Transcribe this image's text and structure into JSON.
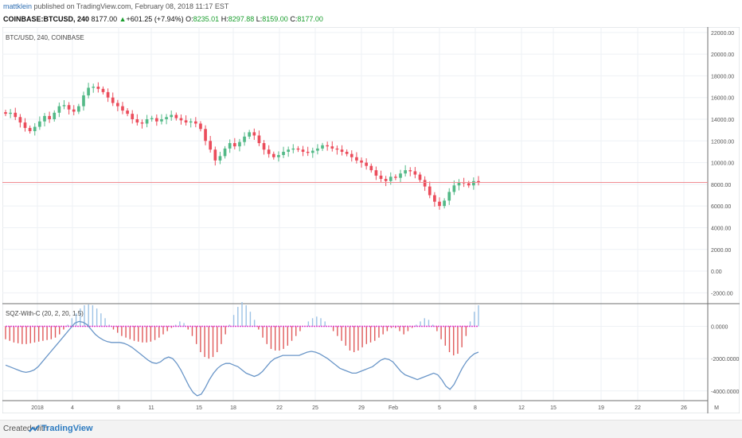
{
  "header": {
    "author": "mattklein",
    "published": "published on TradingView.com, February 08, 2018 11:17 EST",
    "symbol": "COINBASE:BTCUSD, 240",
    "last": "8177.00",
    "change": "+601.25 (+7.94%)",
    "o_label": "O:",
    "o": "8235.01",
    "h_label": "H:",
    "h": "8297.88",
    "l_label": "L:",
    "l": "8159.00",
    "c_label": "C:",
    "c": "8177.00"
  },
  "footer": {
    "created_with": "Created with",
    "brand": "TradingView"
  },
  "colors": {
    "up": "#53b987",
    "down": "#eb4d5c",
    "price_line": "#f08c92",
    "grid": "#eef1f5",
    "hist_up": "#9dc3e6",
    "hist_down": "#e05a5a",
    "zero": "#e040d0",
    "osc": "#6a96c8"
  },
  "chart_data": [
    {
      "type": "candlestick",
      "title": "BTC/USD, 240, COINBASE",
      "ylim": [
        -3000,
        22500
      ],
      "y_ticks": [
        "22000.00",
        "20000.00",
        "18000.00",
        "16000.00",
        "14000.00",
        "12000.00",
        "10000.00",
        "8000.00",
        "6000.00",
        "4000.00",
        "2000.00",
        "0.00",
        "-2000.00"
      ],
      "last_price": 8177,
      "x_ticks": [
        "2018",
        "4",
        "8",
        "11",
        "15",
        "18",
        "22",
        "25",
        "29",
        "Feb",
        "5",
        "8",
        "12",
        "15",
        "19",
        "22",
        "26",
        "M"
      ],
      "close_series": [
        14500,
        14600,
        14200,
        13700,
        13200,
        12900,
        13300,
        13800,
        14300,
        14000,
        14600,
        15200,
        15300,
        14900,
        14700,
        15200,
        16200,
        16900,
        17000,
        16800,
        16500,
        16000,
        15500,
        15200,
        14800,
        14500,
        14000,
        13700,
        13600,
        14000,
        14100,
        13800,
        14000,
        14200,
        14400,
        14100,
        13900,
        13700,
        13800,
        13600,
        13100,
        12000,
        11200,
        10200,
        10600,
        11300,
        11800,
        11500,
        11900,
        12400,
        12800,
        12500,
        11800,
        11200,
        10800,
        10500,
        10700,
        11000,
        11200,
        11300,
        11200,
        11000,
        10900,
        11100,
        11300,
        11600,
        11500,
        11300,
        11200,
        11000,
        10800,
        10500,
        10200,
        10000,
        9700,
        9300,
        8800,
        8500,
        8300,
        8700,
        8600,
        9000,
        9300,
        9200,
        8900,
        8400,
        7800,
        7000,
        6400,
        6000,
        6500,
        7300,
        7900,
        8200,
        8100,
        7900,
        8300,
        8177
      ]
    },
    {
      "type": "bar",
      "title": "SQZ-With-C (20, 2, 20, 1.5)",
      "ylim": [
        -4600,
        1400
      ],
      "y_ticks": [
        "0.0000",
        "-2000.0000",
        "-4000.0000"
      ],
      "histogram": [
        -800,
        -900,
        -1000,
        -1050,
        -1100,
        -1100,
        -1050,
        -1000,
        -950,
        -900,
        -850,
        -800,
        -700,
        -500,
        -200,
        100,
        500,
        800,
        1100,
        1300,
        1350,
        1300,
        1100,
        800,
        500,
        100,
        -200,
        -400,
        -600,
        -700,
        -800,
        -900,
        -950,
        -1000,
        -1000,
        -950,
        -850,
        -700,
        -500,
        -300,
        -100,
        100,
        300,
        200,
        -200,
        -600,
        -1100,
        -1600,
        -1900,
        -2000,
        -1900,
        -1600,
        -1100,
        -500,
        100,
        700,
        1200,
        1500,
        1300,
        900,
        400,
        -200,
        -700,
        -1100,
        -1400,
        -1500,
        -1500,
        -1400,
        -1200,
        -900,
        -600,
        -300,
        0,
        300,
        500,
        600,
        500,
        300,
        0,
        -300,
        -600,
        -900,
        -1200,
        -1500,
        -1600,
        -1500,
        -1300,
        -1100,
        -1000,
        -900,
        -700,
        -500,
        -300,
        -100,
        -100,
        -300,
        -500,
        -300,
        -100,
        100,
        300,
        500,
        400,
        100,
        -300,
        -800,
        -1200,
        -1600,
        -1800,
        -1700,
        -1300,
        -600,
        300,
        900,
        1300
      ],
      "oscillator": [
        -2400,
        -2500,
        -2600,
        -2700,
        -2800,
        -2850,
        -2800,
        -2700,
        -2500,
        -2200,
        -1900,
        -1600,
        -1300,
        -1000,
        -700,
        -400,
        -100,
        200,
        300,
        250,
        100,
        -200,
        -500,
        -700,
        -850,
        -950,
        -1000,
        -1000,
        -1000,
        -1050,
        -1150,
        -1300,
        -1500,
        -1700,
        -1900,
        -2100,
        -2250,
        -2300,
        -2200,
        -2000,
        -1900,
        -2000,
        -2300,
        -2700,
        -3200,
        -3700,
        -4100,
        -4300,
        -4200,
        -3800,
        -3300,
        -2900,
        -2600,
        -2400,
        -2300,
        -2300,
        -2400,
        -2500,
        -2700,
        -2900,
        -3000,
        -3100,
        -3000,
        -2800,
        -2500,
        -2200,
        -2000,
        -1900,
        -1800,
        -1800,
        -1800,
        -1800,
        -1800,
        -1700,
        -1600,
        -1550,
        -1600,
        -1700,
        -1850,
        -2000,
        -2200,
        -2400,
        -2600,
        -2700,
        -2800,
        -2900,
        -2900,
        -2800,
        -2700,
        -2600,
        -2500,
        -2300,
        -2100,
        -2000,
        -2050,
        -2200,
        -2500,
        -2800,
        -3000,
        -3100,
        -3200,
        -3300,
        -3200,
        -3100,
        -3000,
        -2900,
        -3000,
        -3300,
        -3700,
        -3900,
        -3600,
        -3100,
        -2600,
        -2200,
        -1900,
        -1700,
        -1600
      ]
    }
  ]
}
